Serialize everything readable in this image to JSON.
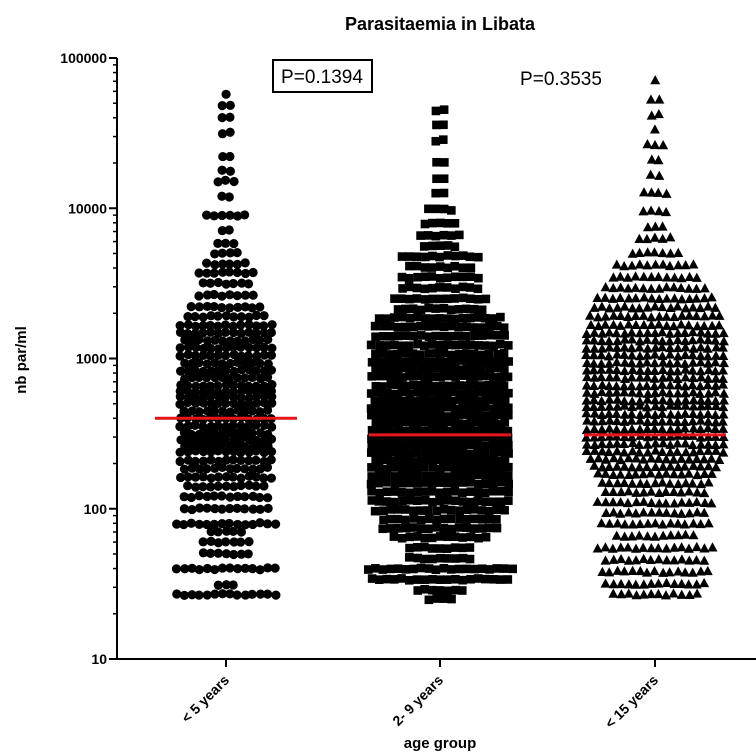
{
  "chart_data": {
    "type": "scatter",
    "subtype": "dot-plot-with-median",
    "title": "Parasitaemia in Libata",
    "xlabel": "age group",
    "ylabel": "nb par/ml",
    "y_scale": "log",
    "ylim": [
      10,
      100000
    ],
    "y_ticks": [
      "10",
      "100",
      "1000",
      "10000",
      "100000"
    ],
    "categories": [
      "< 5 years",
      "2- 9 years",
      "< 15 years"
    ],
    "marker_colors": {
      "points": "#000000",
      "median": "#e8151b"
    },
    "series": [
      {
        "category": "< 5 years",
        "marker": "circle",
        "median": 400,
        "values_range": [
          27,
          58000
        ],
        "approx_n": 420
      },
      {
        "category": "2- 9 years",
        "marker": "square",
        "median": 310,
        "values_range": [
          24,
          48000
        ],
        "approx_n": 640
      },
      {
        "category": "< 15 years",
        "marker": "triangle",
        "median": 310,
        "values_range": [
          24,
          72000
        ],
        "approx_n": 720
      }
    ],
    "annotations": [
      {
        "text": "P=0.1394",
        "boxed": true
      },
      {
        "text": "P=0.3535",
        "boxed": false
      }
    ]
  }
}
